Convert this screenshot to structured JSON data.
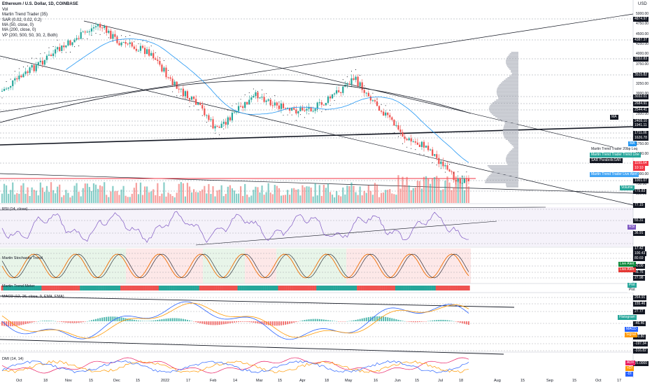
{
  "header": {
    "title": "Ethereum / U.S. Dollar, 1D, COINBASE",
    "currency": "USD",
    "indicators": [
      "Vol",
      "Martin Trend Trader (35)",
      "SAR (0.02, 0.02, 0.2)",
      "MA (50, close, 0)",
      "MA (200, close, 0)",
      "VP (200, 500, 50, 30, 2, Both)"
    ]
  },
  "panes": {
    "rsi": "RSI (14, close)",
    "stoch": "Martin Stochastic Trend",
    "trendmeter": "Martin Trend Meter",
    "macd": "MACD (12, 26, close, 9, EMA, EMA)",
    "dmi": "DMI (14, 14)"
  },
  "price_scale": [
    "5000.00",
    "4750.00",
    "4500.00",
    "4250.00",
    "4000.00",
    "3750.00",
    "3500.00",
    "3250.00",
    "3000.00",
    "2750.00",
    "2500.00",
    "2250.00",
    "2000.00",
    "1750.00",
    "1500.00",
    "1250.00",
    "1000.00",
    "750.00",
    "500.00"
  ],
  "price_badges": [
    {
      "text": "4874.97",
      "color": "#131722"
    },
    {
      "text": "4387.37",
      "color": "#131722"
    },
    {
      "text": "3932.83",
      "color": "#131722"
    },
    {
      "text": "3515.82",
      "color": "#131722"
    },
    {
      "text": "3032.01",
      "color": "#131722"
    },
    {
      "text": "2684.91",
      "color": "#131722"
    },
    {
      "text": "2544.41",
      "color": "#131722"
    },
    {
      "text": "2408.10",
      "color": "#131722"
    },
    {
      "text": "1941.11",
      "color": "#131722"
    },
    {
      "text": "1711.06",
      "color": "#131722"
    },
    {
      "text": "1626.78",
      "color": "#131722"
    },
    {
      "text": "1191.64",
      "color": "#f23645"
    },
    {
      "text": "10:10",
      "color": "#f23645"
    },
    {
      "text": "1001.07",
      "color": "#131722"
    },
    {
      "text": "775.83",
      "color": "#131722"
    },
    {
      "text": "77.15",
      "color": "#131722"
    },
    {
      "text": "55.31",
      "color": "#131722"
    },
    {
      "text": "36.91",
      "color": "#131722"
    },
    {
      "text": "17.42",
      "color": "#131722"
    },
    {
      "text": "100.43",
      "color": "#131722"
    },
    {
      "text": "80.69",
      "color": "#131722"
    },
    {
      "text": "40.00",
      "color": "#131722"
    },
    {
      "text": "46.76",
      "color": "#131722"
    },
    {
      "text": "27.98",
      "color": "#131722"
    },
    {
      "text": "264.91",
      "color": "#131722"
    },
    {
      "text": "155.46",
      "color": "#131722"
    },
    {
      "text": "27.77",
      "color": "#131722"
    },
    {
      "text": "-46.46",
      "color": "#131722"
    },
    {
      "text": "-90.80",
      "color": "#131722"
    },
    {
      "text": "-197.34",
      "color": "#131722"
    },
    {
      "text": "-316.82",
      "color": "#131722"
    },
    {
      "text": "25.0000",
      "color": "#131722"
    }
  ],
  "right_labels": {
    "ma": "MA",
    "ma2": "MA",
    "trend_loq": "Martin Trend Trader 20bp Loq",
    "trend_line": "Martin Trend Trader Trend Line",
    "sar": "SAR ParabolicSAR",
    "live_alert_main": "Martin Trend Trader Live Alert",
    "volume": "Volume",
    "rsi": "RSI",
    "live_alert_1": "Live Alert",
    "live_alert_2": "Live Alert",
    "plot1": "Plot",
    "plot2": "Plot",
    "histogram": "Histogram",
    "macd": "MACD",
    "signal": "Signal",
    "adx": "ADX",
    "di_plus": "+DI",
    "di_minus": "-DI"
  },
  "x_axis": [
    "Oct",
    "18",
    "Nov",
    "15",
    "Dec",
    "15",
    "2022",
    "17",
    "Feb",
    "14",
    "Mar",
    "15",
    "Apr",
    "18",
    "May",
    "16",
    "Jun",
    "15",
    "Jul",
    "18",
    "Aug",
    "15",
    "Sep",
    "15",
    "Oct",
    "17"
  ],
  "colors": {
    "up": "#26a69a",
    "down": "#ef5350",
    "ma50": "#2196f3",
    "ma200": "#131722",
    "rsi": "#7e57c2",
    "accent": "#2962ff"
  }
}
